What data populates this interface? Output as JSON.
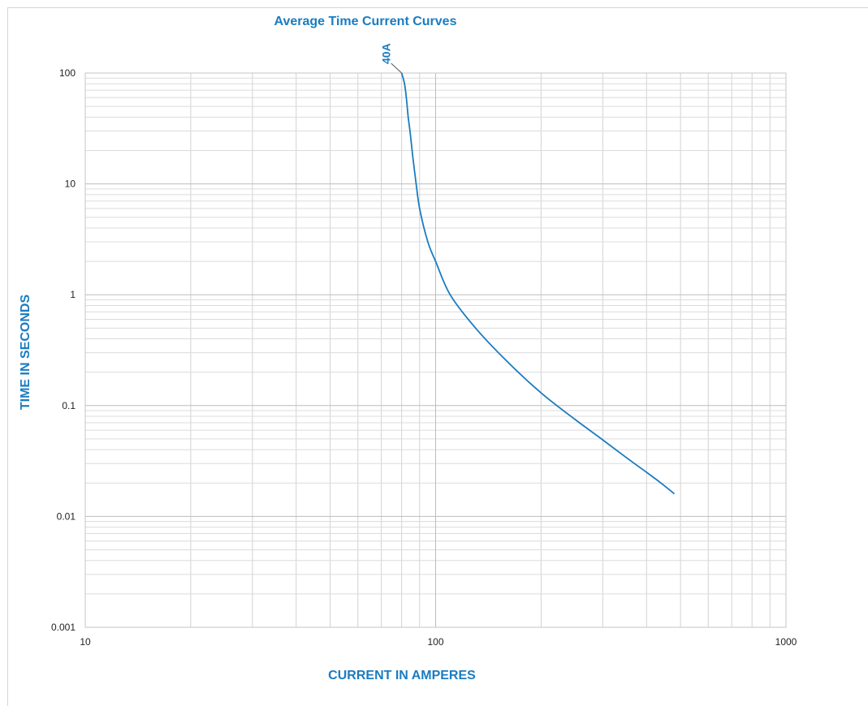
{
  "chart_data": {
    "type": "line",
    "title": "Average Time Current Curves",
    "xlabel": "CURRENT IN AMPERES",
    "ylabel": "TIME IN SECONDS",
    "x_scale": "log",
    "y_scale": "log",
    "xlim": [
      10,
      1000
    ],
    "ylim": [
      0.001,
      100
    ],
    "grid": true,
    "x_ticks": [
      {
        "value": 10,
        "label": "10"
      },
      {
        "value": 100,
        "label": "100"
      },
      {
        "value": 1000,
        "label": "1000"
      }
    ],
    "y_ticks": [
      {
        "value": 100,
        "label": "100"
      },
      {
        "value": 10,
        "label": "10"
      },
      {
        "value": 1,
        "label": "1"
      },
      {
        "value": 0.1,
        "label": "0.1"
      },
      {
        "value": 0.01,
        "label": "0.01"
      },
      {
        "value": 0.001,
        "label": "0.001"
      }
    ],
    "series": [
      {
        "name": "40A",
        "color": "#1a7cc1",
        "x": [
          80,
          81.5,
          82.5,
          83.5,
          84.5,
          86,
          88,
          90,
          95,
          100,
          110,
          130,
          160,
          200,
          250,
          300,
          350,
          400,
          440,
          480
        ],
        "y": [
          100,
          80,
          60,
          40,
          30,
          18,
          10,
          6,
          3,
          2,
          1,
          0.5,
          0.25,
          0.13,
          0.075,
          0.049,
          0.034,
          0.025,
          0.02,
          0.016
        ]
      }
    ],
    "annotations": [
      {
        "text": "40A",
        "series": "40A",
        "x": 80,
        "y": 100
      }
    ]
  }
}
